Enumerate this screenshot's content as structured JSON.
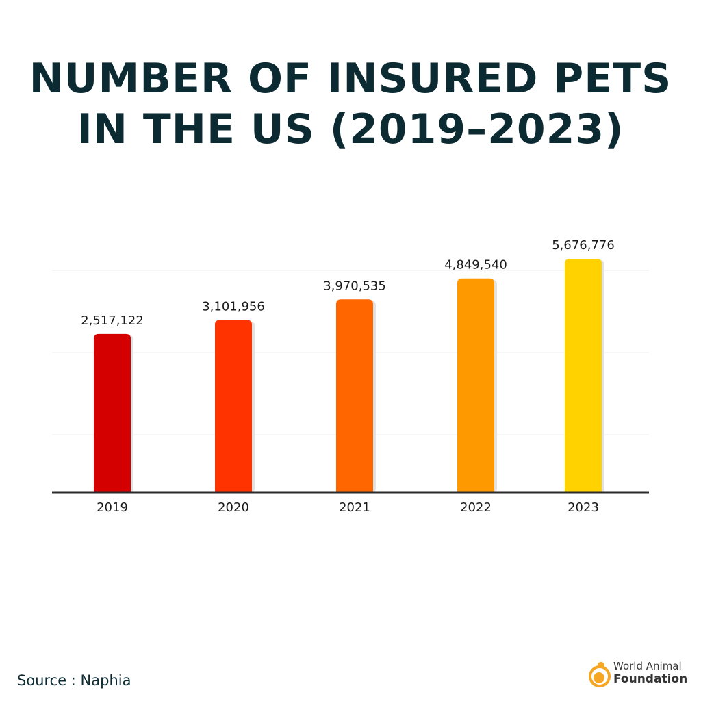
{
  "title_lines": [
    "NUMBER OF INSURED PETS",
    "IN THE US (2019–2023)"
  ],
  "chart_data": {
    "type": "bar",
    "title": "NUMBER OF INSURED PETS IN THE US (2019–2023)",
    "categories": [
      "2019",
      "2020",
      "2021",
      "2022",
      "2023"
    ],
    "values": [
      2517122,
      3101956,
      3970535,
      4849540,
      5676776
    ],
    "data_labels": [
      "2,517,122",
      "3,101,956",
      "3,970,535",
      "4,849,540",
      "5,676,776"
    ],
    "colors": [
      "#d40000",
      "#ff3300",
      "#ff6600",
      "#ff9900",
      "#ffd200"
    ],
    "xlabel": "",
    "ylabel": "",
    "ylim": [
      -4100000,
      6250000
    ],
    "grid": true,
    "legend": "none"
  },
  "source": "Source : Naphia",
  "logo": {
    "line1": "World Animal",
    "line2": "Foundation",
    "color": "#f5a623"
  }
}
